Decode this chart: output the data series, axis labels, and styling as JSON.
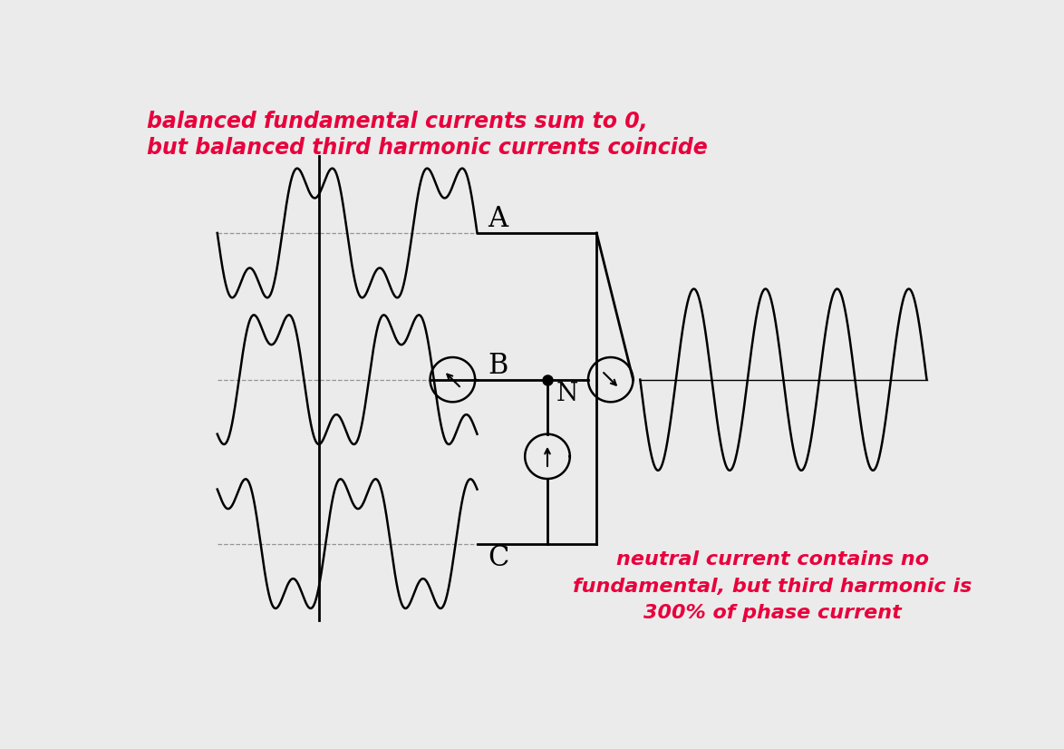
{
  "bg_color": "#ebebeb",
  "text_color_red": "#e8003c",
  "text_color_black": "#000000",
  "title_line1": "balanced fundamental currents sum to 0,",
  "title_line2": "but balanced third harmonic currents coincide",
  "label_A": "A",
  "label_B": "B",
  "label_C": "C",
  "label_N": "N",
  "neutral_text_line1": "neutral current contains no",
  "neutral_text_line2": "fundamental, but third harmonic is",
  "neutral_text_line3": "300% of phase current",
  "lw_wave": 1.8,
  "lw_circuit": 2.0
}
